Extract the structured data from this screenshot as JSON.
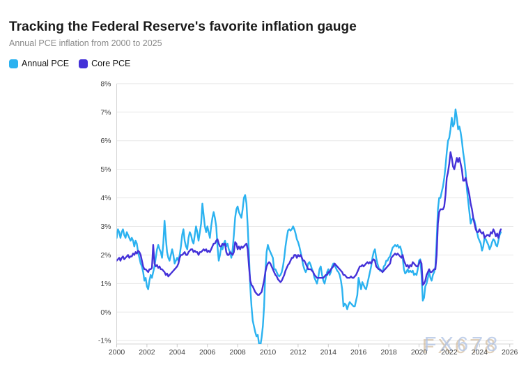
{
  "header": {
    "title": "Tracking the Federal Reserve's favorite inflation gauge",
    "subtitle": "Annual PCE inflation from 2000 to 2025"
  },
  "legend": [
    {
      "label": "Annual PCE",
      "color": "#2bb2f0"
    },
    {
      "label": "Core PCE",
      "color": "#4431d8"
    }
  ],
  "watermark": {
    "text": "FX678",
    "fill": "#b4c6e6",
    "shadow": "#c8ab84"
  },
  "colors": {
    "grid": "#e7e7e7",
    "axis": "#d4d4d4",
    "tick": "#c9c9c9",
    "tick_label": "#3f3f3f"
  },
  "chart_data": {
    "type": "line",
    "title": "Tracking the Federal Reserve's favorite inflation gauge",
    "subtitle": "Annual PCE inflation from 2000 to 2025",
    "xlabel": "",
    "ylabel": "",
    "x_start": "2000-01",
    "x_end": "2025-06",
    "x_step_months": 1,
    "xlim": [
      2000,
      2026.3
    ],
    "ylim": [
      -1,
      8
    ],
    "grid": true,
    "legend_position": "top-left",
    "x_ticks": [
      2000,
      2002,
      2004,
      2006,
      2008,
      2010,
      2012,
      2014,
      2016,
      2018,
      2020,
      2022,
      2024,
      2026
    ],
    "y_ticks": [
      8,
      7,
      6,
      5,
      4,
      3,
      2,
      1,
      0,
      -1
    ],
    "y_tick_labels": [
      "8%",
      "7%",
      "6%",
      "5%",
      "4%",
      "3%",
      "2%",
      "1%",
      "0%",
      "-1%"
    ],
    "series": [
      {
        "name": "Annual PCE",
        "color": "#2bb2f0",
        "values": [
          2.6,
          2.9,
          2.8,
          2.6,
          2.8,
          2.9,
          2.7,
          2.6,
          2.8,
          2.7,
          2.6,
          2.5,
          2.6,
          2.5,
          2.3,
          2.5,
          2.4,
          2.1,
          1.9,
          1.7,
          1.6,
          1.4,
          1.1,
          1.2,
          0.9,
          0.8,
          1.1,
          1.3,
          1.2,
          1.4,
          1.6,
          1.9,
          2.2,
          2.35,
          2.2,
          2.1,
          1.9,
          2.4,
          3.2,
          2.6,
          2.1,
          1.9,
          1.8,
          2.0,
          2.2,
          2.0,
          1.7,
          1.8,
          1.9,
          1.8,
          2.0,
          2.3,
          2.7,
          2.9,
          2.5,
          2.3,
          2.2,
          2.6,
          2.8,
          2.7,
          2.5,
          2.4,
          2.7,
          3.0,
          2.8,
          2.5,
          2.8,
          3.1,
          3.8,
          3.4,
          3.0,
          2.8,
          3.0,
          2.8,
          2.6,
          3.0,
          3.3,
          3.5,
          3.3,
          3.0,
          2.3,
          1.8,
          2.0,
          2.3,
          2.2,
          2.4,
          2.5,
          2.3,
          2.4,
          2.2,
          2.1,
          1.9,
          2.2,
          2.7,
          3.3,
          3.6,
          3.7,
          3.5,
          3.4,
          3.3,
          3.6,
          4.0,
          4.1,
          3.8,
          3.0,
          2.0,
          0.9,
          0.2,
          -0.3,
          -0.5,
          -0.7,
          -0.85,
          -0.8,
          -1.1,
          -1.2,
          -0.9,
          -0.5,
          0.2,
          1.4,
          2.1,
          2.35,
          2.2,
          2.1,
          2.0,
          1.9,
          1.5,
          1.5,
          1.4,
          1.3,
          1.25,
          1.3,
          1.4,
          1.6,
          1.9,
          2.3,
          2.6,
          2.85,
          2.9,
          2.85,
          2.9,
          3.0,
          2.9,
          2.75,
          2.55,
          2.45,
          2.3,
          2.1,
          1.9,
          1.65,
          1.5,
          1.4,
          1.5,
          1.7,
          1.75,
          1.65,
          1.5,
          1.4,
          1.2,
          1.1,
          1.0,
          1.2,
          1.5,
          1.6,
          1.3,
          1.1,
          1.0,
          1.2,
          1.4,
          1.5,
          1.3,
          1.4,
          1.6,
          1.7,
          1.65,
          1.55,
          1.45,
          1.4,
          1.3,
          1.1,
          0.8,
          0.2,
          0.3,
          0.25,
          0.1,
          0.25,
          0.35,
          0.3,
          0.25,
          0.2,
          0.2,
          0.4,
          0.6,
          1.2,
          1.0,
          0.8,
          1.05,
          0.95,
          0.85,
          0.8,
          1.0,
          1.2,
          1.4,
          1.6,
          1.9,
          2.1,
          2.2,
          1.9,
          1.7,
          1.55,
          1.45,
          1.45,
          1.4,
          1.6,
          1.65,
          1.8,
          1.8,
          1.9,
          1.95,
          2.1,
          2.25,
          2.3,
          2.35,
          2.3,
          2.35,
          2.25,
          2.3,
          2.15,
          1.9,
          1.5,
          1.35,
          1.4,
          1.5,
          1.4,
          1.45,
          1.4,
          1.45,
          1.3,
          1.35,
          1.3,
          1.5,
          1.8,
          1.85,
          1.3,
          0.4,
          0.5,
          0.9,
          1.0,
          1.2,
          1.4,
          1.2,
          1.1,
          1.3,
          1.4,
          1.6,
          2.5,
          3.6,
          4.0,
          4.0,
          4.2,
          4.4,
          4.7,
          5.1,
          5.6,
          6.0,
          6.1,
          6.4,
          6.8,
          6.5,
          6.6,
          7.1,
          6.8,
          6.4,
          6.5,
          6.3,
          6.0,
          5.6,
          5.3,
          4.9,
          4.3,
          3.9,
          3.5,
          3.1,
          3.25,
          3.3,
          3.2,
          3.0,
          2.8,
          2.6,
          2.5,
          2.4,
          2.15,
          2.3,
          2.6,
          2.55,
          2.45,
          2.35,
          2.2,
          2.3,
          2.45,
          2.55,
          2.5,
          2.35,
          2.3,
          2.5,
          2.7,
          2.8
        ]
      },
      {
        "name": "Core PCE",
        "color": "#4431d8",
        "values": [
          1.8,
          1.85,
          1.9,
          1.8,
          1.9,
          1.95,
          1.85,
          1.9,
          1.95,
          2.0,
          1.9,
          1.95,
          1.95,
          2.05,
          2.0,
          2.1,
          2.05,
          2.15,
          2.1,
          2.0,
          1.8,
          1.6,
          1.5,
          1.5,
          1.45,
          1.4,
          1.5,
          1.5,
          1.55,
          2.35,
          1.7,
          1.6,
          1.65,
          1.55,
          1.6,
          1.5,
          1.5,
          1.45,
          1.4,
          1.3,
          1.35,
          1.25,
          1.3,
          1.35,
          1.4,
          1.45,
          1.5,
          1.55,
          1.6,
          1.7,
          1.9,
          2.0,
          2.0,
          2.05,
          2.1,
          2.0,
          2.0,
          2.1,
          2.15,
          2.2,
          2.2,
          2.1,
          2.15,
          2.1,
          2.1,
          2.0,
          2.1,
          2.1,
          2.15,
          2.2,
          2.15,
          2.2,
          2.1,
          2.15,
          2.1,
          2.2,
          2.3,
          2.4,
          2.4,
          2.5,
          2.55,
          2.4,
          2.3,
          2.3,
          2.4,
          2.35,
          2.4,
          2.1,
          2.0,
          2.0,
          2.1,
          2.05,
          2.0,
          2.1,
          2.45,
          2.4,
          2.2,
          2.3,
          2.2,
          2.3,
          2.25,
          2.3,
          2.35,
          2.4,
          2.2,
          1.6,
          1.1,
          0.95,
          0.9,
          0.8,
          0.7,
          0.65,
          0.6,
          0.6,
          0.65,
          0.7,
          0.9,
          1.1,
          1.4,
          1.6,
          1.7,
          1.75,
          1.7,
          1.6,
          1.5,
          1.4,
          1.3,
          1.25,
          1.15,
          1.1,
          1.05,
          1.1,
          1.2,
          1.3,
          1.45,
          1.55,
          1.65,
          1.7,
          1.8,
          1.9,
          1.9,
          2.0,
          2.0,
          1.9,
          2.0,
          1.95,
          2.0,
          1.9,
          1.8,
          1.8,
          1.7,
          1.6,
          1.5,
          1.5,
          1.5,
          1.45,
          1.4,
          1.3,
          1.25,
          1.2,
          1.2,
          1.2,
          1.2,
          1.2,
          1.2,
          1.25,
          1.3,
          1.3,
          1.4,
          1.4,
          1.5,
          1.55,
          1.6,
          1.7,
          1.65,
          1.6,
          1.55,
          1.5,
          1.45,
          1.4,
          1.3,
          1.3,
          1.25,
          1.2,
          1.2,
          1.2,
          1.25,
          1.2,
          1.2,
          1.25,
          1.3,
          1.4,
          1.5,
          1.6,
          1.6,
          1.65,
          1.6,
          1.65,
          1.7,
          1.75,
          1.7,
          1.75,
          1.7,
          1.8,
          1.85,
          1.8,
          1.6,
          1.55,
          1.5,
          1.5,
          1.45,
          1.4,
          1.45,
          1.5,
          1.55,
          1.6,
          1.65,
          1.7,
          1.9,
          1.95,
          2.0,
          2.05,
          2.0,
          2.05,
          2.0,
          1.95,
          1.9,
          2.0,
          1.8,
          1.7,
          1.6,
          1.65,
          1.55,
          1.65,
          1.6,
          1.75,
          1.7,
          1.65,
          1.6,
          1.6,
          1.7,
          1.8,
          1.7,
          0.95,
          1.0,
          1.1,
          1.3,
          1.4,
          1.5,
          1.4,
          1.4,
          1.45,
          1.5,
          1.5,
          2.0,
          3.1,
          3.5,
          3.6,
          3.6,
          3.6,
          3.7,
          4.1,
          4.7,
          4.9,
          5.2,
          5.6,
          5.4,
          5.1,
          5.0,
          5.2,
          5.4,
          5.25,
          5.4,
          5.2,
          5.0,
          4.6,
          4.6,
          4.7,
          4.5,
          4.3,
          4.1,
          3.8,
          3.6,
          3.3,
          3.1,
          2.9,
          2.8,
          2.8,
          2.9,
          2.8,
          2.75,
          2.8,
          2.6,
          2.65,
          2.7,
          2.7,
          2.65,
          2.8,
          2.75,
          2.9,
          2.8,
          2.65,
          2.75,
          2.6,
          2.8,
          2.9
        ]
      }
    ]
  }
}
